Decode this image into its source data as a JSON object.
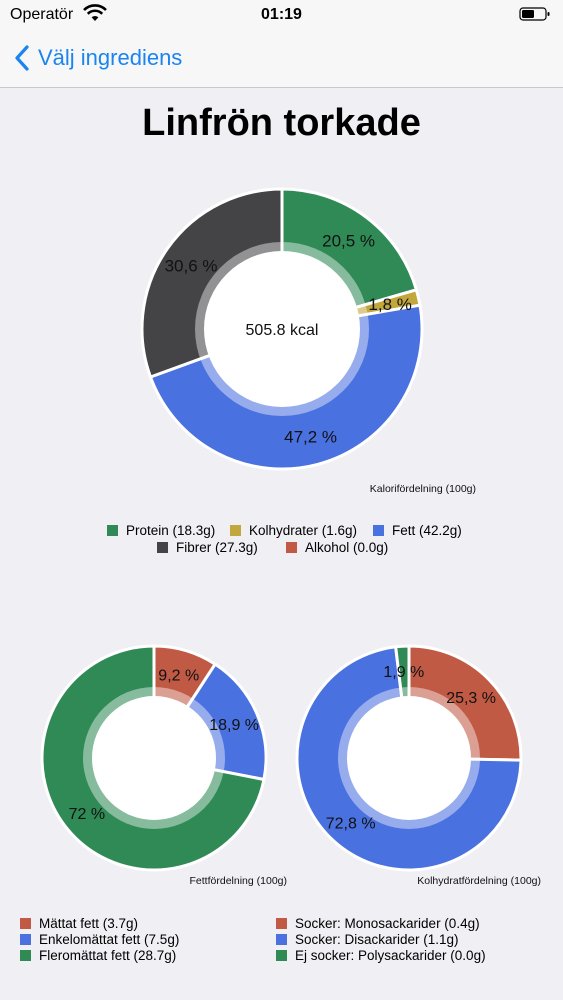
{
  "status": {
    "carrier": "Operatör",
    "time": "01:19"
  },
  "nav": {
    "back_label": "Välj ingrediens"
  },
  "page": {
    "title": "Linfrön torkade"
  },
  "colors": {
    "protein": "#2f8a56",
    "carbs": "#c2a73c",
    "fat": "#4a71e0",
    "fiber": "#444447",
    "alcohol": "#c15a45",
    "saturated": "#c15a45",
    "mono": "#4a71e0",
    "poly": "#2f8a56"
  },
  "chart_data": [
    {
      "type": "pie",
      "variant": "donut",
      "center_label": "505.8 kcal",
      "caption": "Kalorifördelning (100g)",
      "slices": [
        {
          "legend": "Protein (18.3g)",
          "percent": 20.5,
          "label": "20,5 %",
          "color_key": "protein"
        },
        {
          "legend": "Kolhydrater (1.6g)",
          "percent": 1.8,
          "label": "1,8 %",
          "color_key": "carbs"
        },
        {
          "legend": "Fett (42.2g)",
          "percent": 47.2,
          "label": "47,2 %",
          "color_key": "fat"
        },
        {
          "legend": "Fibrer (27.3g)",
          "percent": 30.6,
          "label": "30,6 %",
          "color_key": "fiber"
        },
        {
          "legend": "Alkohol (0.0g)",
          "percent": 0,
          "label": "",
          "color_key": "alcohol"
        }
      ]
    },
    {
      "type": "pie",
      "variant": "donut",
      "center_label": "",
      "caption": "Fettfördelning (100g)",
      "slices": [
        {
          "legend": "Mättat fett (3.7g)",
          "percent": 9.2,
          "label": "9,2 %",
          "color_key": "saturated"
        },
        {
          "legend": "Enkelomättat fett (7.5g)",
          "percent": 18.9,
          "label": "18,9 %",
          "color_key": "mono"
        },
        {
          "legend": "Fleromättat fett (28.7g)",
          "percent": 72,
          "label": "72 %",
          "color_key": "poly"
        }
      ]
    },
    {
      "type": "pie",
      "variant": "donut",
      "center_label": "",
      "caption": "Kolhydratfördelning (100g)",
      "slices": [
        {
          "legend": "Socker: Monosackarider (0.4g)",
          "percent": 25.3,
          "label": "25,3 %",
          "color_key": "saturated"
        },
        {
          "legend": "Socker: Disackarider (1.1g)",
          "percent": 72.8,
          "label": "72,8 %",
          "color_key": "mono"
        },
        {
          "legend": "Ej socker: Polysackarider (0.0g)",
          "percent": 1.9,
          "label": "1,9 %",
          "color_key": "poly"
        }
      ]
    }
  ]
}
